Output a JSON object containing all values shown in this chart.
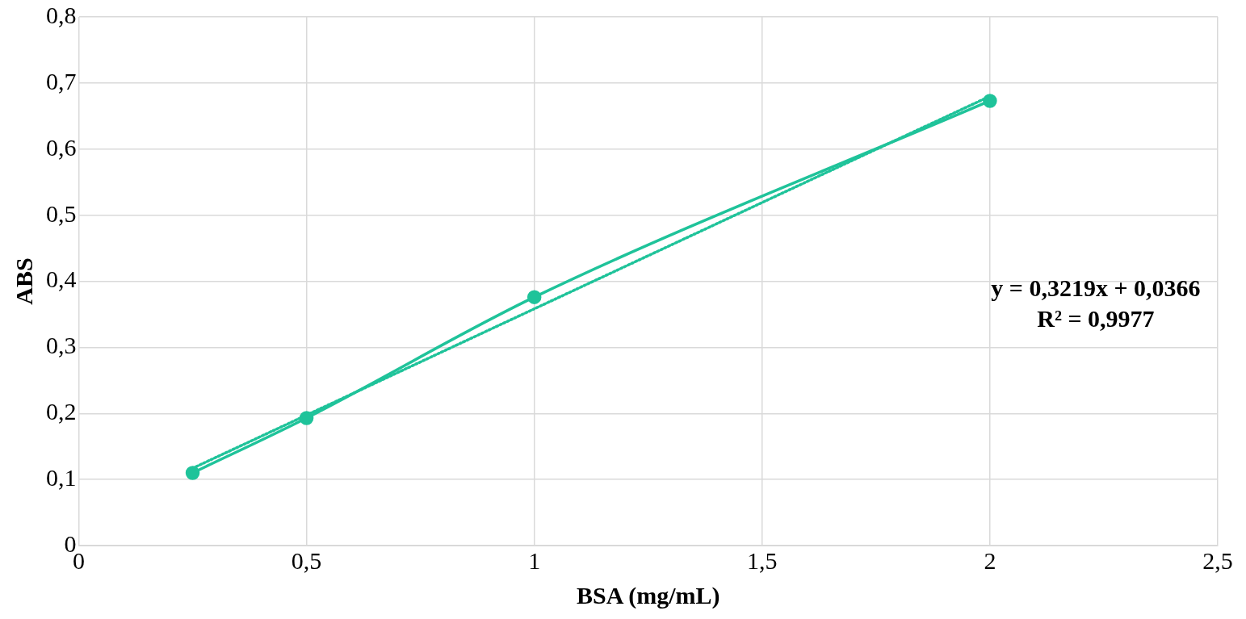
{
  "chart_data": {
    "type": "line",
    "xlabel": "BSA (mg/mL)",
    "ylabel": "ABS",
    "x": [
      0.25,
      0.5,
      1,
      2
    ],
    "series": [
      {
        "color": "#1fc39a",
        "values": [
          0.11,
          0.193,
          0.376,
          0.673
        ],
        "marker": "circle",
        "line_style": "solid"
      },
      {
        "type": "line",
        "color": "#1fc39a",
        "x": [
          0.25,
          2
        ],
        "values": [
          0.117,
          0.68
        ],
        "marker": "none",
        "line_style": "dotted"
      }
    ],
    "xlim": [
      0,
      2.5
    ],
    "xticks": [
      0,
      {
        "value": 0.5,
        "label": "0,5"
      },
      1,
      {
        "value": 1.5,
        "label": "1,5"
      },
      2,
      {
        "value": 2.5,
        "label": "2,5"
      }
    ],
    "ylim": [
      0,
      0.8
    ],
    "yticks": [
      0,
      {
        "value": 0.1,
        "label": "0,1"
      },
      {
        "value": 0.2,
        "label": "0,2"
      },
      {
        "value": 0.3,
        "label": "0,3"
      },
      {
        "value": 0.4,
        "label": "0,4"
      },
      {
        "value": 0.5,
        "label": "0,5"
      },
      {
        "value": 0.6,
        "label": "0,6"
      },
      {
        "value": 0.7,
        "label": "0,7"
      },
      {
        "value": 0.8,
        "label": "0,8"
      }
    ],
    "grid": true,
    "annotations": [
      "y = 0,3219x + 0,0366",
      "R² = 0,9977"
    ]
  }
}
